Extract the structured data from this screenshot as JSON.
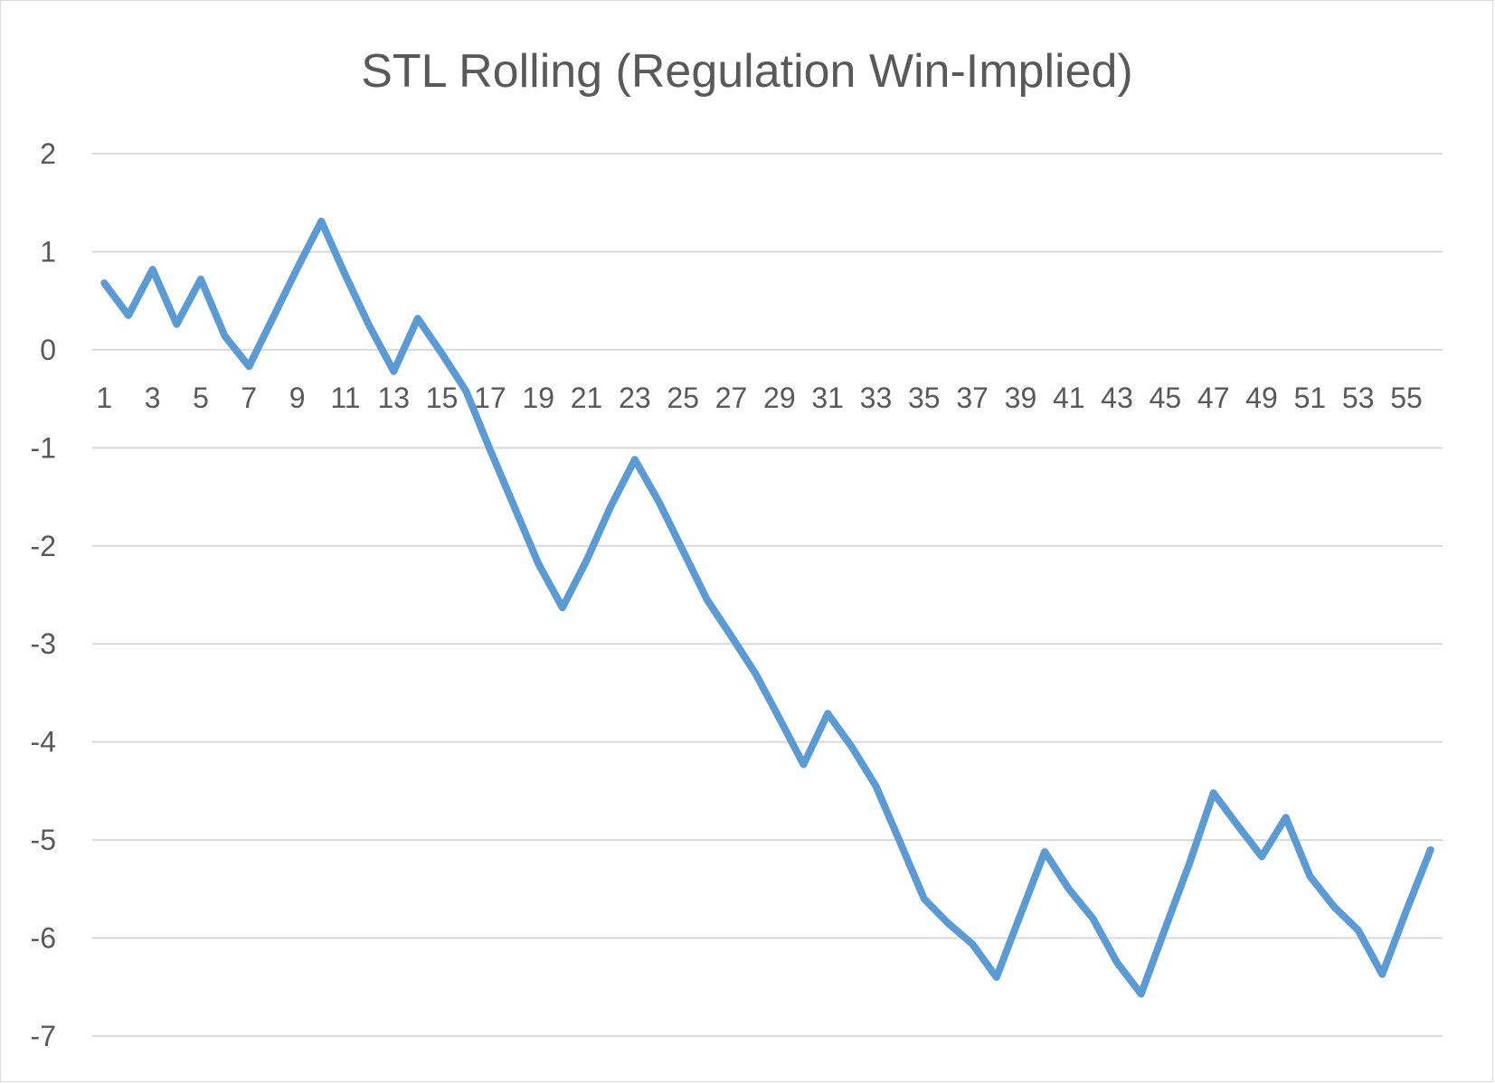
{
  "chart_data": {
    "type": "line",
    "title": "STL Rolling (Regulation Win-Implied)",
    "xlabel": "",
    "ylabel": "",
    "ylim": [
      -7,
      2
    ],
    "yticks": [
      2,
      1,
      0,
      -1,
      -2,
      -3,
      -4,
      -5,
      -6,
      -7
    ],
    "xtick_labels": [
      1,
      3,
      5,
      7,
      9,
      11,
      13,
      15,
      17,
      19,
      21,
      23,
      25,
      27,
      29,
      31,
      33,
      35,
      37,
      39,
      41,
      43,
      45,
      47,
      49,
      51,
      53,
      55
    ],
    "grid": true,
    "legend": "none",
    "line_color": "#5b9bd5",
    "x": [
      1,
      2,
      3,
      4,
      5,
      6,
      7,
      8,
      9,
      10,
      11,
      12,
      13,
      14,
      15,
      16,
      17,
      18,
      19,
      20,
      21,
      22,
      23,
      24,
      25,
      26,
      27,
      28,
      29,
      30,
      31,
      32,
      33,
      34,
      35,
      36,
      37,
      38,
      39,
      40,
      41,
      42,
      43,
      44,
      45,
      46,
      47,
      48,
      49,
      50,
      51,
      52,
      53,
      54,
      55,
      56
    ],
    "series": [
      {
        "values": [
          0.68,
          0.35,
          0.82,
          0.26,
          0.72,
          0.14,
          -0.17,
          0.33,
          0.83,
          1.31,
          0.76,
          0.24,
          -0.22,
          0.32,
          -0.04,
          -0.42,
          -1.02,
          -1.6,
          -2.18,
          -2.63,
          -2.15,
          -1.6,
          -1.12,
          -1.55,
          -2.05,
          -2.55,
          -2.92,
          -3.3,
          -3.76,
          -4.23,
          -3.71,
          -4.05,
          -4.45,
          -5.02,
          -5.6,
          -5.85,
          -6.06,
          -6.4,
          -5.76,
          -5.12,
          -5.5,
          -5.8,
          -6.25,
          -6.57,
          -5.9,
          -5.24,
          -4.52,
          -4.85,
          -5.17,
          -4.77,
          -5.37,
          -5.68,
          -5.92,
          -6.37,
          -5.72,
          -5.1
        ]
      }
    ]
  }
}
